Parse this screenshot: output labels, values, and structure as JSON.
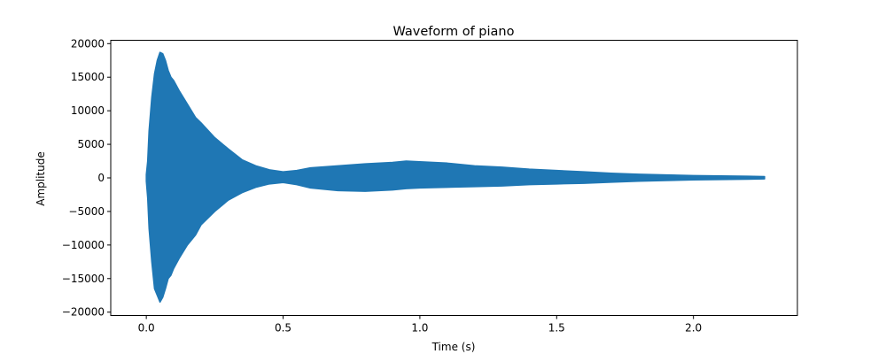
{
  "chart_data": {
    "type": "area",
    "title": "Waveform of piano",
    "xlabel": "Time (s)",
    "ylabel": "Amplitude",
    "xlim": [
      -0.13,
      2.38
    ],
    "ylim": [
      -20500,
      20500
    ],
    "xticks": [
      0.0,
      0.5,
      1.0,
      1.5,
      2.0
    ],
    "xtick_labels": [
      "0.0",
      "0.5",
      "1.0",
      "1.5",
      "2.0"
    ],
    "yticks": [
      -20000,
      -15000,
      -10000,
      -5000,
      0,
      5000,
      10000,
      15000,
      20000
    ],
    "ytick_labels": [
      "−20000",
      "−15000",
      "−10000",
      "−5000",
      "0",
      "5000",
      "10000",
      "15000",
      "20000"
    ],
    "grid": false,
    "series": [
      {
        "color": "#1f77b4",
        "x": [
          0.0,
          0.005,
          0.01,
          0.02,
          0.03,
          0.04,
          0.05,
          0.06,
          0.07,
          0.08,
          0.09,
          0.1,
          0.12,
          0.15,
          0.18,
          0.2,
          0.25,
          0.3,
          0.35,
          0.4,
          0.45,
          0.5,
          0.55,
          0.6,
          0.7,
          0.8,
          0.9,
          0.95,
          1.0,
          1.1,
          1.2,
          1.3,
          1.4,
          1.5,
          1.6,
          1.7,
          1.8,
          1.9,
          2.0,
          2.1,
          2.2,
          2.26
        ],
        "envelope_upper": [
          500,
          2500,
          7000,
          12000,
          15500,
          17500,
          18700,
          18500,
          17500,
          16000,
          15000,
          14500,
          13000,
          11000,
          9000,
          8200,
          6000,
          4300,
          2700,
          1800,
          1200,
          900,
          1100,
          1500,
          1800,
          2100,
          2300,
          2500,
          2400,
          2200,
          1800,
          1600,
          1300,
          1100,
          900,
          700,
          550,
          450,
          350,
          300,
          250,
          200
        ],
        "envelope_lower": [
          -500,
          -3000,
          -7500,
          -12500,
          -16500,
          -17500,
          -18500,
          -17800,
          -16500,
          -15000,
          -14500,
          -13500,
          -12000,
          -10000,
          -8500,
          -7000,
          -5000,
          -3300,
          -2200,
          -1400,
          -900,
          -700,
          -1000,
          -1500,
          -1900,
          -2000,
          -1800,
          -1600,
          -1500,
          -1400,
          -1300,
          -1200,
          -1000,
          -900,
          -800,
          -650,
          -500,
          -400,
          -300,
          -250,
          -200,
          -150
        ]
      }
    ]
  }
}
